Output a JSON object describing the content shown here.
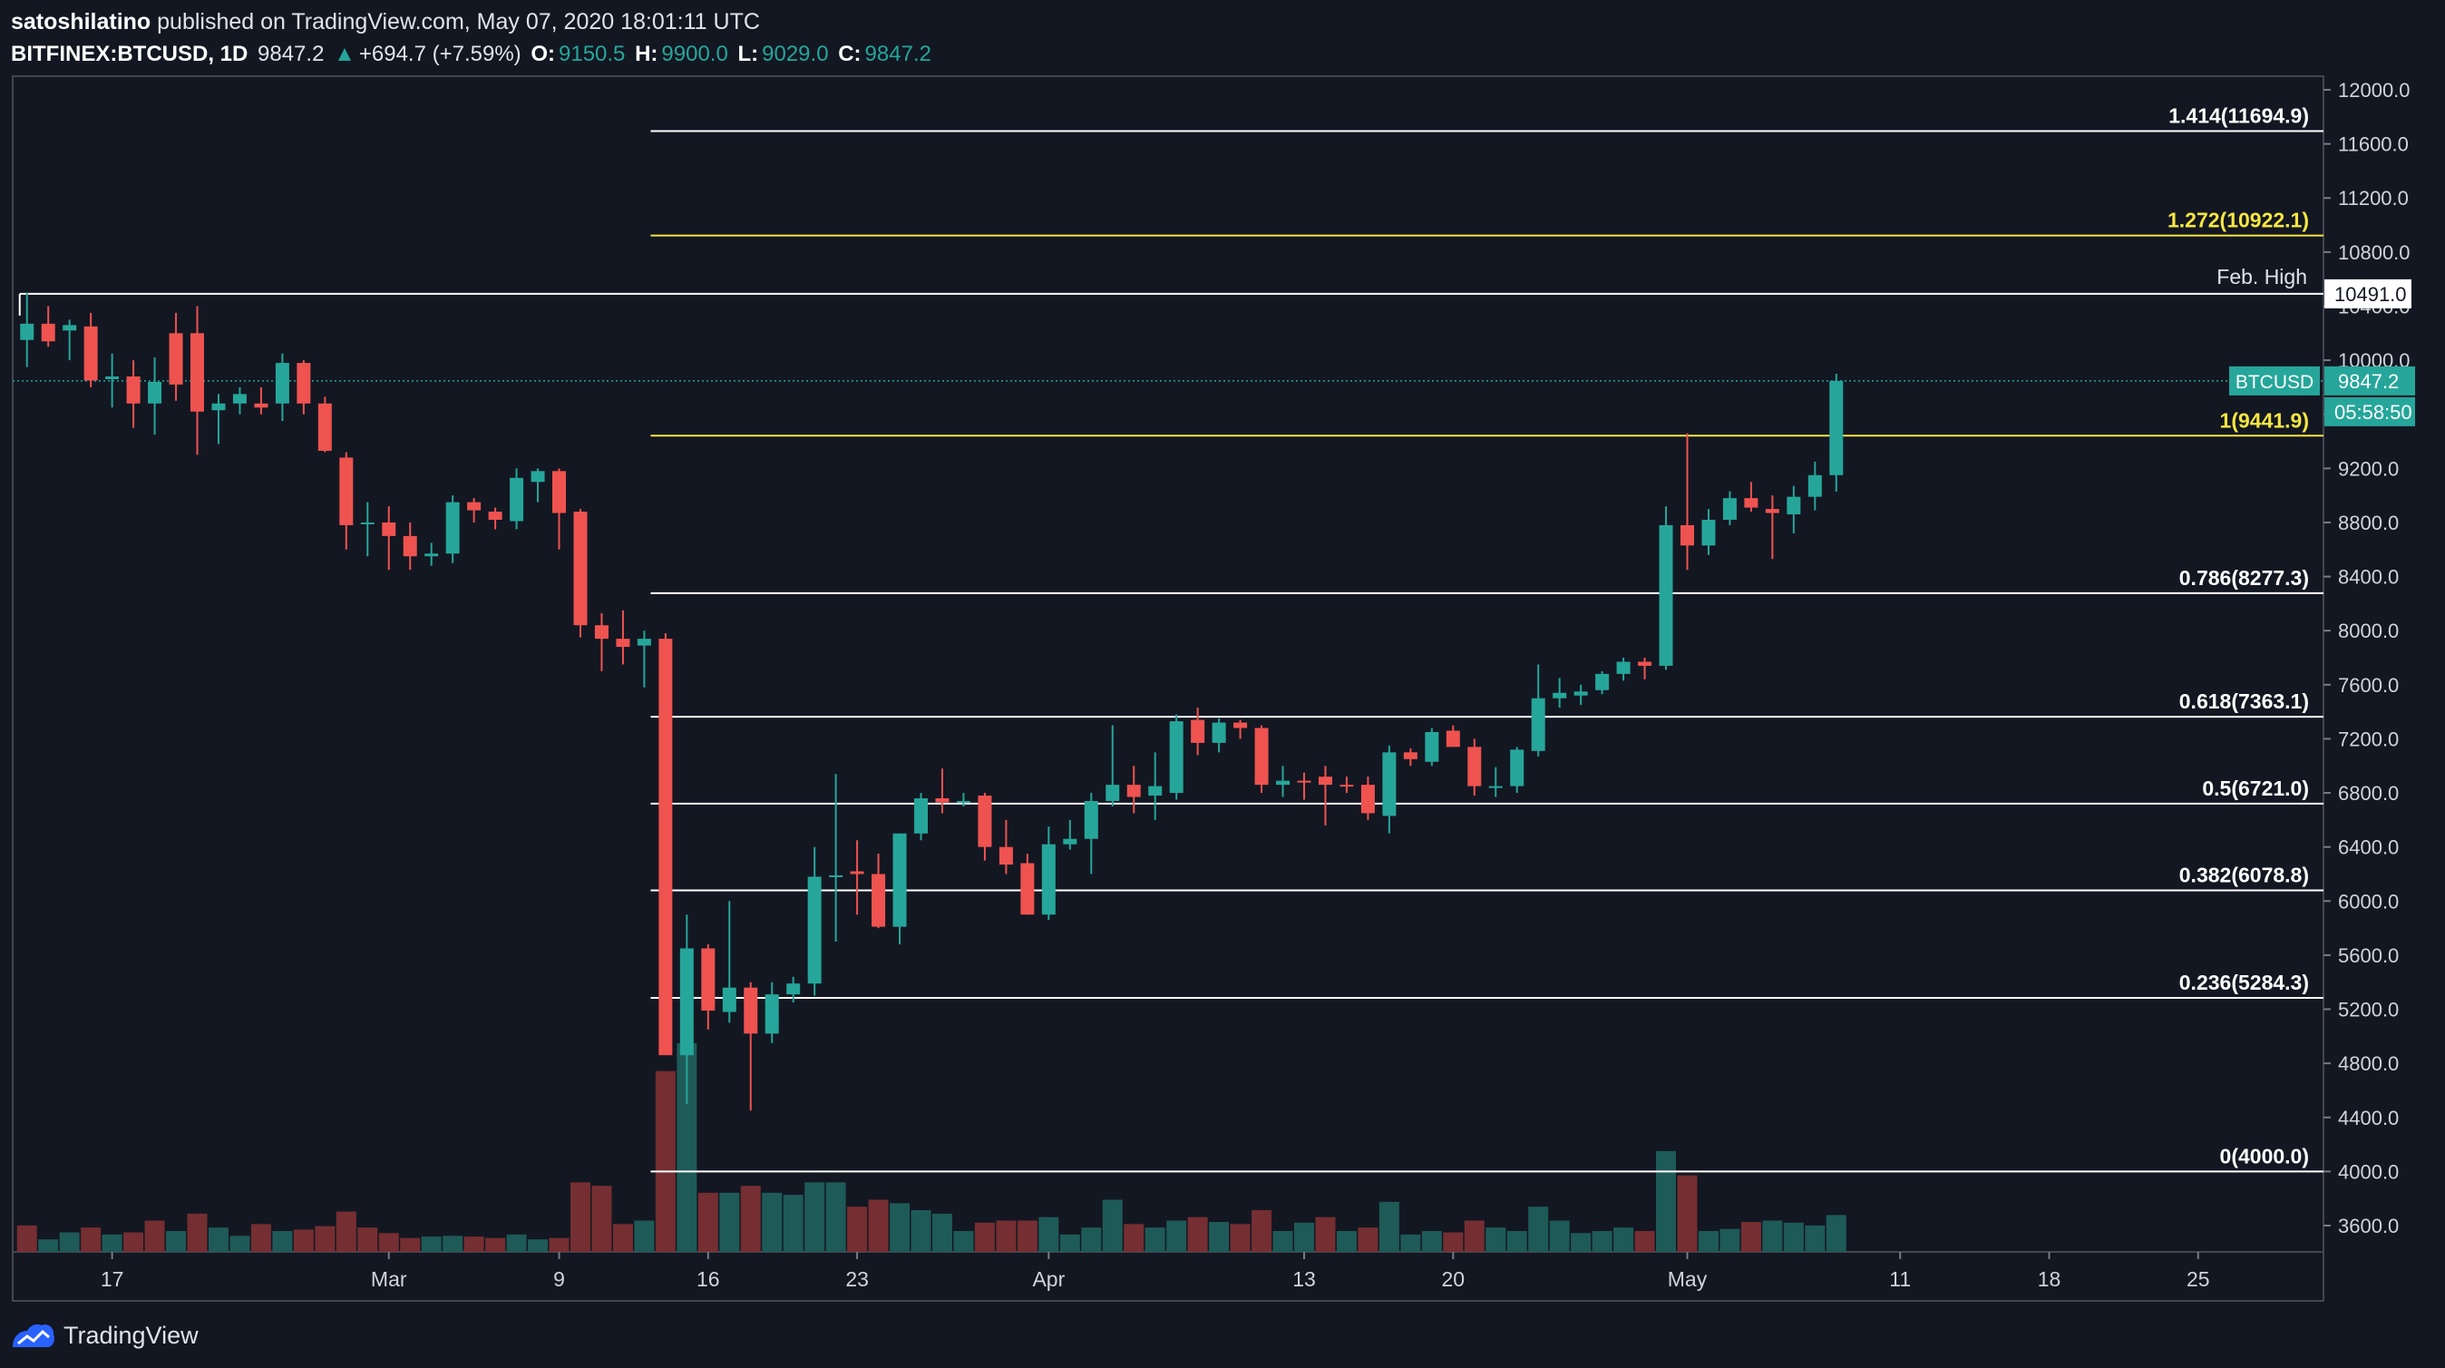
{
  "header": {
    "user": "satoshilatino",
    "published_text": "published on TradingView.com, May 07, 2020 18:01:11 UTC",
    "symbol": "BITFINEX:BTCUSD, 1D",
    "last": "9847.2",
    "change": "+694.7 (+7.59%)",
    "open_label": "O:",
    "open": "9150.5",
    "high_label": "H:",
    "high": "9900.0",
    "low_label": "L:",
    "low": "9029.0",
    "close_label": "C:",
    "close": "9847.2"
  },
  "footer": {
    "brand": "TradingView"
  },
  "colors": {
    "background": "#131722",
    "up": "#26a69a",
    "down": "#ef5350",
    "fib_white": "#ffffff",
    "fib_yellow": "#f5e642",
    "axis_text": "#d1d4dc",
    "last_price_tag": "#26a69a"
  },
  "chart_data": {
    "type": "candlestick",
    "symbol": "BTCUSD",
    "ylim": [
      3400,
      12100
    ],
    "y_ticks": [
      3600,
      4000,
      4400,
      4800,
      5200,
      5600,
      6000,
      6400,
      6800,
      7200,
      7600,
      8000,
      8400,
      8800,
      9200,
      9600,
      10000,
      10400,
      10800,
      11200,
      11600,
      12000
    ],
    "y_tick_labels": [
      "3600.0",
      "4000.0",
      "4400.0",
      "4800.0",
      "5200.0",
      "5600.0",
      "6000.0",
      "6400.0",
      "6800.0",
      "7200.0",
      "7600.0",
      "8000.0",
      "8400.0",
      "8800.0",
      "9200.0",
      "9600.0",
      "10000.0",
      "10400.0",
      "10800.0",
      "11200.0",
      "11600.0",
      "12000.0"
    ],
    "x_ticks": [
      {
        "label": "17",
        "day": 4
      },
      {
        "label": "Mar",
        "day": 17
      },
      {
        "label": "9",
        "day": 25
      },
      {
        "label": "16",
        "day": 32
      },
      {
        "label": "23",
        "day": 39
      },
      {
        "label": "Apr",
        "day": 48
      },
      {
        "label": "13",
        "day": 60
      },
      {
        "label": "20",
        "day": 67
      },
      {
        "label": "May",
        "day": 78
      },
      {
        "label": "11",
        "day": 88
      },
      {
        "label": "18",
        "day": 95
      },
      {
        "label": "25",
        "day": 102
      }
    ],
    "x_range_days": [
      -0.5,
      105.5
    ],
    "candles": [
      [
        10150,
        10500,
        9950,
        10270
      ],
      [
        10270,
        10400,
        10100,
        10140
      ],
      [
        10220,
        10300,
        10000,
        10260
      ],
      [
        10250,
        10350,
        9800,
        9850
      ],
      [
        9860,
        10050,
        9650,
        9880
      ],
      [
        9880,
        10000,
        9500,
        9680
      ],
      [
        9680,
        10020,
        9450,
        9840
      ],
      [
        10200,
        10350,
        9700,
        9820
      ],
      [
        10200,
        10400,
        9300,
        9620
      ],
      [
        9630,
        9750,
        9380,
        9680
      ],
      [
        9680,
        9800,
        9600,
        9750
      ],
      [
        9680,
        9800,
        9600,
        9650
      ],
      [
        9680,
        10050,
        9550,
        9980
      ],
      [
        9980,
        10000,
        9600,
        9680
      ],
      [
        9680,
        9730,
        9320,
        9330
      ],
      [
        9280,
        9320,
        8600,
        8780
      ],
      [
        8800,
        8950,
        8550,
        8800
      ],
      [
        8800,
        8920,
        8450,
        8700
      ],
      [
        8700,
        8800,
        8450,
        8550
      ],
      [
        8550,
        8650,
        8480,
        8570
      ],
      [
        8570,
        9000,
        8500,
        8950
      ],
      [
        8950,
        8980,
        8800,
        8890
      ],
      [
        8880,
        8910,
        8750,
        8820
      ],
      [
        8810,
        9200,
        8750,
        9130
      ],
      [
        9100,
        9200,
        8950,
        9180
      ],
      [
        9180,
        9200,
        8600,
        8870
      ],
      [
        8880,
        8900,
        7950,
        8040
      ],
      [
        8040,
        8130,
        7700,
        7940
      ],
      [
        7940,
        8150,
        7750,
        7880
      ],
      [
        7890,
        8000,
        7580,
        7940
      ],
      [
        7940,
        7980,
        4900,
        4860
      ],
      [
        4860,
        5900,
        4500,
        5650
      ],
      [
        5650,
        5680,
        5050,
        5190
      ],
      [
        5180,
        6000,
        5100,
        5360
      ],
      [
        5360,
        5400,
        4450,
        5020
      ],
      [
        5020,
        5400,
        4950,
        5310
      ],
      [
        5310,
        5440,
        5250,
        5390
      ],
      [
        5390,
        6400,
        5300,
        6180
      ],
      [
        6180,
        6940,
        5700,
        6190
      ],
      [
        6220,
        6450,
        5900,
        6200
      ],
      [
        6200,
        6350,
        5800,
        5810
      ],
      [
        5810,
        6500,
        5680,
        6500
      ],
      [
        6500,
        6800,
        6450,
        6760
      ],
      [
        6760,
        6980,
        6650,
        6730
      ],
      [
        6730,
        6800,
        6700,
        6740
      ],
      [
        6780,
        6800,
        6300,
        6400
      ],
      [
        6400,
        6600,
        6200,
        6270
      ],
      [
        6280,
        6350,
        5900,
        5900
      ],
      [
        5900,
        6550,
        5860,
        6420
      ],
      [
        6420,
        6600,
        6380,
        6460
      ],
      [
        6460,
        6800,
        6200,
        6740
      ],
      [
        6740,
        7300,
        6700,
        6860
      ],
      [
        6860,
        7000,
        6650,
        6770
      ],
      [
        6780,
        7100,
        6600,
        6850
      ],
      [
        6800,
        7380,
        6750,
        7330
      ],
      [
        7340,
        7430,
        7080,
        7170
      ],
      [
        7170,
        7350,
        7100,
        7320
      ],
      [
        7320,
        7340,
        7200,
        7280
      ],
      [
        7280,
        7300,
        6800,
        6860
      ],
      [
        6860,
        7000,
        6770,
        6890
      ],
      [
        6890,
        6950,
        6750,
        6880
      ],
      [
        6920,
        7000,
        6560,
        6860
      ],
      [
        6860,
        6920,
        6800,
        6850
      ],
      [
        6860,
        6920,
        6600,
        6650
      ],
      [
        6630,
        7150,
        6500,
        7100
      ],
      [
        7100,
        7130,
        7000,
        7050
      ],
      [
        7030,
        7280,
        7000,
        7250
      ],
      [
        7260,
        7300,
        7150,
        7140
      ],
      [
        7140,
        7200,
        6780,
        6850
      ],
      [
        6840,
        6990,
        6770,
        6850
      ],
      [
        6850,
        7140,
        6800,
        7120
      ],
      [
        7110,
        7750,
        7070,
        7500
      ],
      [
        7500,
        7650,
        7430,
        7540
      ],
      [
        7520,
        7600,
        7450,
        7550
      ],
      [
        7560,
        7700,
        7530,
        7680
      ],
      [
        7680,
        7800,
        7630,
        7770
      ],
      [
        7770,
        7800,
        7640,
        7740
      ],
      [
        7740,
        8920,
        7710,
        8780
      ],
      [
        8780,
        9460,
        8450,
        8630
      ],
      [
        8630,
        8900,
        8560,
        8820
      ],
      [
        8820,
        9030,
        8780,
        8980
      ],
      [
        8980,
        9100,
        8880,
        8910
      ],
      [
        8900,
        9000,
        8530,
        8870
      ],
      [
        8860,
        9070,
        8720,
        8990
      ],
      [
        8990,
        9250,
        8890,
        9150
      ],
      [
        9150,
        9900,
        9029,
        9847.2
      ]
    ],
    "volumes": [
      [
        0,
        0.38,
        "down"
      ],
      [
        1,
        0.18,
        "up"
      ],
      [
        2,
        0.28,
        "up"
      ],
      [
        3,
        0.35,
        "down"
      ],
      [
        4,
        0.25,
        "up"
      ],
      [
        5,
        0.28,
        "down"
      ],
      [
        6,
        0.45,
        "down"
      ],
      [
        7,
        0.3,
        "up"
      ],
      [
        8,
        0.55,
        "down"
      ],
      [
        9,
        0.35,
        "up"
      ],
      [
        10,
        0.23,
        "up"
      ],
      [
        11,
        0.4,
        "down"
      ],
      [
        12,
        0.3,
        "up"
      ],
      [
        13,
        0.32,
        "down"
      ],
      [
        14,
        0.37,
        "down"
      ],
      [
        15,
        0.58,
        "down"
      ],
      [
        16,
        0.35,
        "down"
      ],
      [
        17,
        0.27,
        "down"
      ],
      [
        18,
        0.2,
        "down"
      ],
      [
        19,
        0.22,
        "up"
      ],
      [
        20,
        0.23,
        "up"
      ],
      [
        21,
        0.22,
        "down"
      ],
      [
        22,
        0.2,
        "down"
      ],
      [
        23,
        0.25,
        "up"
      ],
      [
        24,
        0.18,
        "up"
      ],
      [
        25,
        0.2,
        "down"
      ],
      [
        26,
        1.0,
        "down"
      ],
      [
        27,
        0.95,
        "down"
      ],
      [
        28,
        0.4,
        "down"
      ],
      [
        29,
        0.45,
        "up"
      ],
      [
        30,
        2.6,
        "down"
      ],
      [
        31,
        3.0,
        "up"
      ],
      [
        32,
        0.85,
        "down"
      ],
      [
        33,
        0.85,
        "up"
      ],
      [
        34,
        0.95,
        "down"
      ],
      [
        35,
        0.85,
        "up"
      ],
      [
        36,
        0.82,
        "up"
      ],
      [
        37,
        1.0,
        "up"
      ],
      [
        38,
        1.0,
        "up"
      ],
      [
        39,
        0.65,
        "down"
      ],
      [
        40,
        0.75,
        "down"
      ],
      [
        41,
        0.7,
        "up"
      ],
      [
        42,
        0.6,
        "up"
      ],
      [
        43,
        0.55,
        "up"
      ],
      [
        44,
        0.3,
        "up"
      ],
      [
        45,
        0.42,
        "down"
      ],
      [
        46,
        0.45,
        "down"
      ],
      [
        47,
        0.45,
        "down"
      ],
      [
        48,
        0.5,
        "up"
      ],
      [
        49,
        0.25,
        "up"
      ],
      [
        50,
        0.35,
        "up"
      ],
      [
        51,
        0.75,
        "up"
      ],
      [
        52,
        0.4,
        "down"
      ],
      [
        53,
        0.35,
        "up"
      ],
      [
        54,
        0.45,
        "up"
      ],
      [
        55,
        0.5,
        "down"
      ],
      [
        56,
        0.43,
        "up"
      ],
      [
        57,
        0.4,
        "down"
      ],
      [
        58,
        0.6,
        "down"
      ],
      [
        59,
        0.3,
        "up"
      ],
      [
        60,
        0.42,
        "up"
      ],
      [
        61,
        0.5,
        "down"
      ],
      [
        62,
        0.3,
        "up"
      ],
      [
        63,
        0.35,
        "down"
      ],
      [
        64,
        0.72,
        "up"
      ],
      [
        65,
        0.25,
        "up"
      ],
      [
        66,
        0.3,
        "up"
      ],
      [
        67,
        0.28,
        "down"
      ],
      [
        68,
        0.45,
        "down"
      ],
      [
        69,
        0.35,
        "up"
      ],
      [
        70,
        0.3,
        "up"
      ],
      [
        71,
        0.65,
        "up"
      ],
      [
        72,
        0.45,
        "up"
      ],
      [
        73,
        0.27,
        "up"
      ],
      [
        74,
        0.3,
        "up"
      ],
      [
        75,
        0.35,
        "up"
      ],
      [
        76,
        0.3,
        "down"
      ],
      [
        77,
        1.45,
        "up"
      ],
      [
        78,
        1.1,
        "down"
      ],
      [
        79,
        0.3,
        "up"
      ],
      [
        80,
        0.33,
        "up"
      ],
      [
        81,
        0.43,
        "down"
      ],
      [
        82,
        0.45,
        "up"
      ],
      [
        83,
        0.42,
        "up"
      ],
      [
        84,
        0.38,
        "up"
      ],
      [
        85,
        0.53,
        "up"
      ]
    ],
    "volume_scale_max": 3.0,
    "fib_levels": [
      {
        "label": "1.414(11694.9)",
        "price": 11694.9,
        "color": "white"
      },
      {
        "label": "1.272(10922.1)",
        "price": 10922.1,
        "color": "yellow"
      },
      {
        "label": "1(9441.9)",
        "price": 9441.9,
        "color": "yellow"
      },
      {
        "label": "0.786(8277.3)",
        "price": 8277.3,
        "color": "white"
      },
      {
        "label": "0.618(7363.1)",
        "price": 7363.1,
        "color": "white"
      },
      {
        "label": "0.5(6721.0)",
        "price": 6721.0,
        "color": "white"
      },
      {
        "label": "0.382(6078.8)",
        "price": 6078.8,
        "color": "white"
      },
      {
        "label": "0.236(5284.3)",
        "price": 5284.3,
        "color": "white"
      },
      {
        "label": "0(4000.0)",
        "price": 4000.0,
        "color": "white"
      }
    ],
    "fib_start_day": 29.3,
    "feb_high": {
      "label": "Feb. High",
      "price": 10491.0,
      "tag": "10491.0"
    },
    "last_price": {
      "price": 9847.2,
      "symbol_tag": "BTCUSD",
      "price_tag": "9847.2",
      "countdown": "05:58:50"
    }
  }
}
